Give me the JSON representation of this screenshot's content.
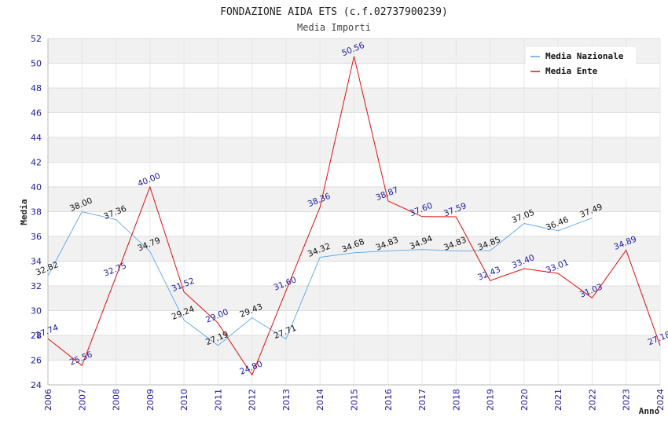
{
  "chart_data": {
    "type": "line",
    "title": "FONDAZIONE AIDA ETS (c.f.02737900239)",
    "subtitle": "Media Importi",
    "ylabel": "Media",
    "xlabel": "Anno",
    "x": [
      "2006",
      "2007",
      "2008",
      "2009",
      "2010",
      "2011",
      "2012",
      "2013",
      "2014",
      "2015",
      "2016",
      "2017",
      "2018",
      "2019",
      "2020",
      "2021",
      "2022",
      "2023",
      "2024"
    ],
    "yticks": [
      "24",
      "26",
      "28",
      "30",
      "32",
      "34",
      "36",
      "38",
      "40",
      "42",
      "44",
      "46",
      "48",
      "50",
      "52"
    ],
    "ylim": [
      24,
      52
    ],
    "grid": true,
    "legend_position": "top-right",
    "series": [
      {
        "name": "Media Nazionale",
        "color": "#5aa5e6",
        "label_color": "#111111",
        "values": [
          32.82,
          38.0,
          37.36,
          34.79,
          29.24,
          27.19,
          29.43,
          27.71,
          34.32,
          34.68,
          34.83,
          34.94,
          34.83,
          34.85,
          37.05,
          36.46,
          37.49,
          null,
          null
        ],
        "labels": [
          "32.82",
          "38.00",
          "37.36",
          "34.79",
          "29.24",
          "27.19",
          "29.43",
          "27.71",
          "34.32",
          "34.68",
          "34.83",
          "34.94",
          "34.83",
          "34.85",
          "37.05",
          "36.46",
          "37.49",
          "",
          ""
        ]
      },
      {
        "name": "Media Ente",
        "color": "#e01010",
        "label_color": "#1a1aa0",
        "values": [
          27.74,
          25.56,
          32.75,
          40.0,
          31.52,
          29.0,
          24.8,
          31.6,
          38.36,
          50.56,
          38.87,
          37.6,
          37.59,
          32.43,
          33.4,
          33.01,
          31.03,
          34.89,
          27.18
        ],
        "labels": [
          "27.74",
          "25.56",
          "32.75",
          "40.00",
          "31.52",
          "29.00",
          "24.80",
          "31.60",
          "38.36",
          "50.56",
          "38.87",
          "37.60",
          "37.59",
          "32.43",
          "33.40",
          "33.01",
          "31.03",
          "34.89",
          "27.18"
        ]
      }
    ]
  }
}
